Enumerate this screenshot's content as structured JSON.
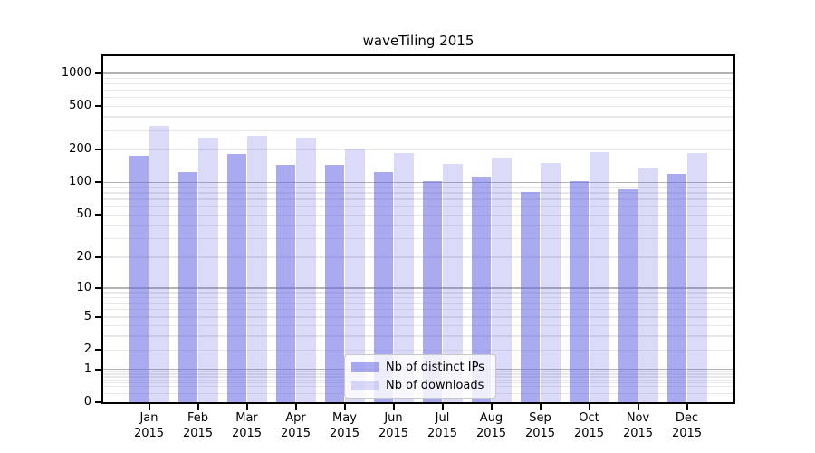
{
  "title": "waveTiling 2015",
  "chart_data": {
    "type": "bar",
    "title": "waveTiling 2015",
    "categories": [
      "Jan 2015",
      "Feb 2015",
      "Mar 2015",
      "Apr 2015",
      "May 2015",
      "Jun 2015",
      "Jul 2015",
      "Aug 2015",
      "Sep 2015",
      "Oct 2015",
      "Nov 2015",
      "Dec 2015"
    ],
    "series": [
      {
        "name": "Nb of distinct IPs",
        "color": "rgba(100,100,230,0.55)",
        "color_hex_on_white": "#aaaaf1",
        "values": [
          175,
          125,
          183,
          146,
          144,
          124,
          103,
          113,
          81,
          103,
          87,
          120
        ]
      },
      {
        "name": "Nb of downloads",
        "color": "rgba(100,100,230,0.23)",
        "color_hex_on_white": "#dbdbf9",
        "values": [
          330,
          259,
          269,
          258,
          205,
          186,
          149,
          171,
          151,
          189,
          137,
          186
        ]
      }
    ],
    "yscale": "log1p",
    "yticks": [
      0,
      1,
      2,
      5,
      10,
      20,
      50,
      100,
      200,
      500,
      1000
    ],
    "ylim": [
      0,
      1460
    ],
    "xlabel": "",
    "ylabel": "",
    "grid": true,
    "grid_minor_color": "#e8e8e8",
    "grid_major_color": "#b3b3b3",
    "spine_color": "#000000",
    "background_color": "#ffffff",
    "legend_position": "inside-bottom-center"
  }
}
